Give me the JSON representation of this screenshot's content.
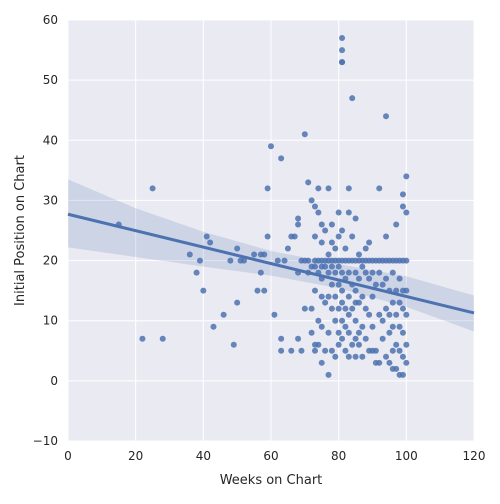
{
  "chart_data": {
    "type": "scatter",
    "title": "",
    "xlabel": "Weeks on Chart",
    "ylabel": "Initial Position on Chart",
    "xlim": [
      0,
      120
    ],
    "ylim": [
      -10,
      60
    ],
    "xticks": [
      0,
      20,
      40,
      60,
      80,
      100,
      120
    ],
    "yticks": [
      -10,
      0,
      10,
      20,
      30,
      40,
      50,
      60
    ],
    "grid": true,
    "legend": "none",
    "colors": {
      "plot_background": "#eaeaf2",
      "grid": "#ffffff",
      "points": "#4c72b0",
      "regression_line": "#4c72b0",
      "confidence_band": "#4c72b0"
    },
    "regression": {
      "line": [
        [
          0,
          27.7
        ],
        [
          120,
          11.3
        ]
      ],
      "ci_upper": [
        [
          0,
          33.5
        ],
        [
          20,
          28.7
        ],
        [
          40,
          24.8
        ],
        [
          60,
          21.6
        ],
        [
          80,
          19.4
        ],
        [
          100,
          17.4
        ],
        [
          120,
          14.2
        ]
      ],
      "ci_lower": [
        [
          0,
          22.2
        ],
        [
          20,
          20.6
        ],
        [
          40,
          19.0
        ],
        [
          60,
          17.5
        ],
        [
          80,
          15.4
        ],
        [
          100,
          12.3
        ],
        [
          120,
          8.2
        ]
      ]
    },
    "points": [
      [
        15,
        26
      ],
      [
        22,
        7
      ],
      [
        25,
        32
      ],
      [
        28,
        7
      ],
      [
        36,
        21
      ],
      [
        38,
        18
      ],
      [
        39,
        20
      ],
      [
        40,
        15
      ],
      [
        41,
        24
      ],
      [
        42,
        23
      ],
      [
        43,
        9
      ],
      [
        46,
        11
      ],
      [
        48,
        20
      ],
      [
        49,
        6
      ],
      [
        50,
        22
      ],
      [
        50,
        13
      ],
      [
        51,
        20
      ],
      [
        52,
        20
      ],
      [
        55,
        21
      ],
      [
        56,
        15
      ],
      [
        57,
        21
      ],
      [
        57,
        18
      ],
      [
        58,
        15
      ],
      [
        58,
        21
      ],
      [
        59,
        32
      ],
      [
        59,
        24
      ],
      [
        60,
        39
      ],
      [
        61,
        11
      ],
      [
        62,
        20
      ],
      [
        63,
        37
      ],
      [
        63,
        7
      ],
      [
        63,
        5
      ],
      [
        64,
        20
      ],
      [
        65,
        22
      ],
      [
        66,
        24
      ],
      [
        66,
        5
      ],
      [
        67,
        24
      ],
      [
        68,
        27
      ],
      [
        68,
        26
      ],
      [
        68,
        18
      ],
      [
        68,
        7
      ],
      [
        69,
        20
      ],
      [
        69,
        5
      ],
      [
        70,
        41
      ],
      [
        70,
        20
      ],
      [
        70,
        12
      ],
      [
        71,
        33
      ],
      [
        71,
        20
      ],
      [
        71,
        18
      ],
      [
        72,
        30
      ],
      [
        72,
        19
      ],
      [
        72,
        12
      ],
      [
        72,
        8
      ],
      [
        73,
        20
      ],
      [
        73,
        29
      ],
      [
        73,
        24
      ],
      [
        73,
        19
      ],
      [
        73,
        15
      ],
      [
        73,
        6
      ],
      [
        73,
        5
      ],
      [
        74,
        28
      ],
      [
        74,
        32
      ],
      [
        74,
        20
      ],
      [
        74,
        18
      ],
      [
        74,
        10
      ],
      [
        74,
        6
      ],
      [
        75,
        20
      ],
      [
        75,
        26
      ],
      [
        75,
        23
      ],
      [
        75,
        19
      ],
      [
        75,
        17
      ],
      [
        75,
        14
      ],
      [
        75,
        9
      ],
      [
        75,
        3
      ],
      [
        76,
        20
      ],
      [
        76,
        25
      ],
      [
        76,
        19
      ],
      [
        76,
        13
      ],
      [
        76,
        5
      ],
      [
        77,
        32
      ],
      [
        77,
        21
      ],
      [
        77,
        20
      ],
      [
        77,
        18
      ],
      [
        77,
        14
      ],
      [
        77,
        8
      ],
      [
        77,
        1
      ],
      [
        78,
        20
      ],
      [
        78,
        26
      ],
      [
        78,
        23
      ],
      [
        78,
        19
      ],
      [
        78,
        16
      ],
      [
        78,
        12
      ],
      [
        78,
        5
      ],
      [
        79,
        20
      ],
      [
        79,
        22
      ],
      [
        79,
        18
      ],
      [
        79,
        14
      ],
      [
        79,
        10
      ],
      [
        79,
        4
      ],
      [
        80,
        20
      ],
      [
        80,
        28
      ],
      [
        80,
        24
      ],
      [
        80,
        19
      ],
      [
        80,
        16
      ],
      [
        80,
        12
      ],
      [
        80,
        8
      ],
      [
        80,
        6
      ],
      [
        81,
        57
      ],
      [
        81,
        55
      ],
      [
        81,
        53
      ],
      [
        81,
        53
      ],
      [
        81,
        20
      ],
      [
        81,
        25
      ],
      [
        81,
        18
      ],
      [
        81,
        15
      ],
      [
        81,
        13
      ],
      [
        81,
        10
      ],
      [
        81,
        7
      ],
      [
        82,
        20
      ],
      [
        82,
        22
      ],
      [
        82,
        17
      ],
      [
        82,
        12
      ],
      [
        82,
        9
      ],
      [
        82,
        5
      ],
      [
        83,
        32
      ],
      [
        83,
        20
      ],
      [
        83,
        28
      ],
      [
        83,
        18
      ],
      [
        83,
        14
      ],
      [
        83,
        11
      ],
      [
        83,
        8
      ],
      [
        83,
        4
      ],
      [
        84,
        47
      ],
      [
        84,
        24
      ],
      [
        84,
        20
      ],
      [
        84,
        16
      ],
      [
        84,
        12
      ],
      [
        84,
        6
      ],
      [
        85,
        27
      ],
      [
        85,
        20
      ],
      [
        85,
        18
      ],
      [
        85,
        15
      ],
      [
        85,
        13
      ],
      [
        85,
        10
      ],
      [
        85,
        7
      ],
      [
        85,
        4
      ],
      [
        86,
        20
      ],
      [
        86,
        21
      ],
      [
        86,
        17
      ],
      [
        86,
        13
      ],
      [
        86,
        8
      ],
      [
        86,
        6
      ],
      [
        87,
        20
      ],
      [
        87,
        19
      ],
      [
        87,
        14
      ],
      [
        87,
        9
      ],
      [
        87,
        4
      ],
      [
        88,
        22
      ],
      [
        88,
        20
      ],
      [
        88,
        18
      ],
      [
        88,
        12
      ],
      [
        88,
        7
      ],
      [
        89,
        20
      ],
      [
        89,
        23
      ],
      [
        89,
        17
      ],
      [
        89,
        11
      ],
      [
        89,
        5
      ],
      [
        90,
        20
      ],
      [
        90,
        18
      ],
      [
        90,
        14
      ],
      [
        90,
        9
      ],
      [
        90,
        5
      ],
      [
        91,
        20
      ],
      [
        91,
        16
      ],
      [
        91,
        5
      ],
      [
        91,
        3
      ],
      [
        92,
        32
      ],
      [
        92,
        20
      ],
      [
        92,
        18
      ],
      [
        92,
        11
      ],
      [
        92,
        3
      ],
      [
        93,
        20
      ],
      [
        93,
        16
      ],
      [
        93,
        10
      ],
      [
        93,
        7
      ],
      [
        94,
        44
      ],
      [
        94,
        24
      ],
      [
        94,
        20
      ],
      [
        94,
        17
      ],
      [
        94,
        12
      ],
      [
        94,
        4
      ],
      [
        95,
        20
      ],
      [
        95,
        15
      ],
      [
        95,
        11
      ],
      [
        95,
        8
      ],
      [
        95,
        3
      ],
      [
        96,
        20
      ],
      [
        96,
        18
      ],
      [
        96,
        13
      ],
      [
        96,
        9
      ],
      [
        96,
        5
      ],
      [
        96,
        2
      ],
      [
        97,
        26
      ],
      [
        97,
        20
      ],
      [
        97,
        15
      ],
      [
        97,
        11
      ],
      [
        97,
        6
      ],
      [
        97,
        2
      ],
      [
        98,
        20
      ],
      [
        98,
        17
      ],
      [
        98,
        13
      ],
      [
        98,
        9
      ],
      [
        98,
        5
      ],
      [
        98,
        1
      ],
      [
        99,
        31
      ],
      [
        99,
        29
      ],
      [
        99,
        20
      ],
      [
        99,
        15
      ],
      [
        99,
        12
      ],
      [
        99,
        8
      ],
      [
        99,
        4
      ],
      [
        99,
        1
      ],
      [
        100,
        34
      ],
      [
        100,
        28
      ],
      [
        100,
        20
      ],
      [
        100,
        15
      ],
      [
        100,
        11
      ],
      [
        100,
        6
      ],
      [
        100,
        3
      ]
    ]
  }
}
